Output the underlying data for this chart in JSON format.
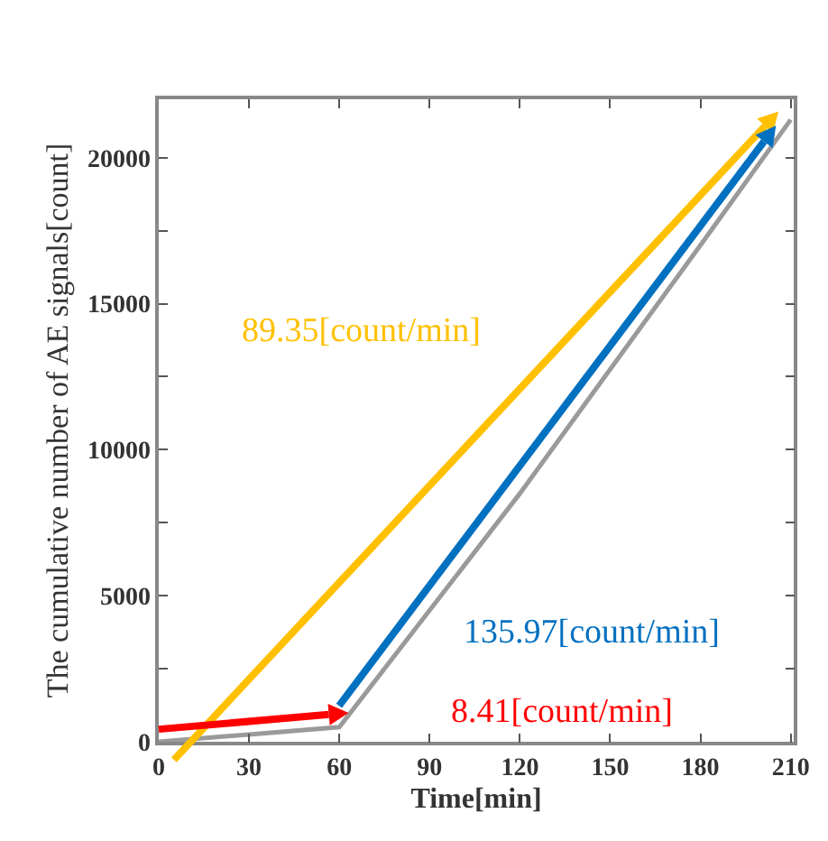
{
  "chart_data": {
    "type": "line",
    "xlabel": "Time[min]",
    "ylabel": "The cumulative number of AE signals[count]",
    "xlim": [
      0,
      211
    ],
    "ylim": [
      0,
      22000
    ],
    "xticks": [
      0,
      30,
      60,
      90,
      120,
      150,
      180,
      210
    ],
    "yticks": [
      0,
      {
        "value": 2500,
        "label": null
      },
      5000,
      {
        "value": 7500,
        "label": null
      },
      10000,
      {
        "value": 12500,
        "label": null
      },
      15000,
      {
        "value": 17500,
        "label": null
      },
      20000
    ],
    "grid": false,
    "marker": "none",
    "series": [
      {
        "color": "#9a9a9a",
        "x": [
          0,
          30,
          60,
          120,
          180,
          210
        ],
        "values": [
          0,
          250,
          500,
          8500,
          17000,
          21300
        ]
      }
    ],
    "annotations": [
      "89.35[count/min]",
      "135.97[count/min]",
      "8.41[count/min]"
    ]
  }
}
